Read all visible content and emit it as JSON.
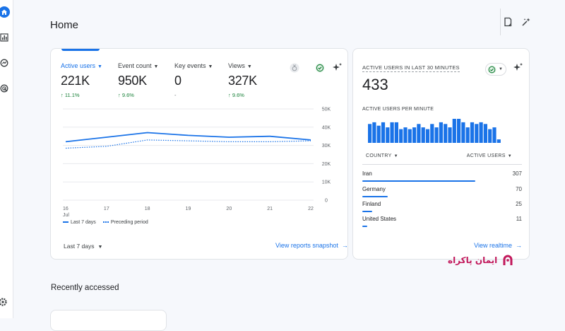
{
  "page": {
    "title": "Home"
  },
  "metrics": [
    {
      "label": "Active users",
      "value": "221K",
      "delta": "↑ 11.1%",
      "active": true
    },
    {
      "label": "Event count",
      "value": "950K",
      "delta": "↑ 9.6%"
    },
    {
      "label": "Key events",
      "value": "0",
      "delta": "-"
    },
    {
      "label": "Views",
      "value": "327K",
      "delta": "↑ 9.6%"
    }
  ],
  "chart_data": {
    "type": "line",
    "categories": [
      "16 Jul",
      "17",
      "18",
      "19",
      "20",
      "21",
      "22"
    ],
    "x_tick_labels": [
      [
        "16",
        "Jul"
      ],
      [
        "17"
      ],
      [
        "18"
      ],
      [
        "19"
      ],
      [
        "20"
      ],
      [
        "21"
      ],
      [
        "22"
      ]
    ],
    "y_ticks": [
      "50K",
      "40K",
      "30K",
      "20K",
      "10K",
      "0"
    ],
    "ylim": [
      0,
      50000
    ],
    "grid": true,
    "legend_position": "bottom-left",
    "series": [
      {
        "name": "Last 7 days",
        "style": "solid",
        "values": [
          32000,
          34500,
          37000,
          35500,
          34500,
          35000,
          33000
        ]
      },
      {
        "name": "Preceding period",
        "style": "dotted",
        "values": [
          28500,
          29500,
          33000,
          32500,
          32000,
          32000,
          32500
        ]
      }
    ]
  },
  "main_footer": {
    "date_range": "Last 7 days",
    "link": "View reports snapshot"
  },
  "realtime": {
    "title": "ACTIVE USERS IN LAST 30 MINUTES",
    "value": "433",
    "per_minute_label": "ACTIVE USERS PER MINUTE",
    "per_minute_values": [
      22,
      24,
      20,
      24,
      18,
      24,
      24,
      16,
      18,
      16,
      18,
      22,
      18,
      16,
      22,
      18,
      24,
      22,
      18,
      28,
      28,
      24,
      18,
      24,
      22,
      24,
      22,
      16,
      18,
      4
    ],
    "col_country": "COUNTRY",
    "col_users": "ACTIVE USERS",
    "rows": [
      {
        "country": "Iran",
        "users": "307",
        "share": 0.71
      },
      {
        "country": "Germany",
        "users": "70",
        "share": 0.16
      },
      {
        "country": "Finland",
        "users": "25",
        "share": 0.06
      },
      {
        "country": "United States",
        "users": "11",
        "share": 0.03
      }
    ],
    "link": "View realtime"
  },
  "recent": {
    "title": "Recently accessed"
  },
  "watermark": {
    "text": "ایمان پاکراه"
  },
  "colors": {
    "accent": "#1a73e8",
    "positive": "#188038",
    "watermark": "#c2185b"
  },
  "icons": [
    "home-icon",
    "bar-chart-icon",
    "explore-icon",
    "target-icon",
    "settings-icon",
    "notes-icon",
    "sparkle-wand-icon",
    "insights-sparkle-icon",
    "check-circle-icon",
    "medal-icon"
  ]
}
